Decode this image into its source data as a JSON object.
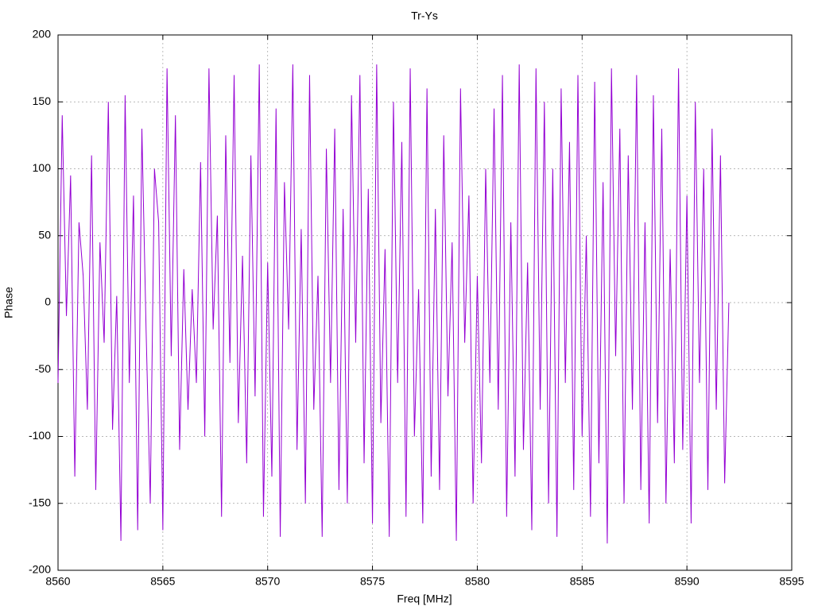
{
  "chart_data": {
    "type": "line",
    "title": "Tr-Ys",
    "xlabel": "Freq [MHz]",
    "ylabel": "Phase",
    "color": "#9400d3",
    "grid": true,
    "xlim": [
      8560,
      8595
    ],
    "xticks": [
      8560,
      8565,
      8570,
      8575,
      8580,
      8585,
      8590,
      8595
    ],
    "ylim": [
      -200,
      200
    ],
    "yticks": [
      -200,
      -150,
      -100,
      -50,
      0,
      50,
      100,
      150,
      200
    ],
    "x": [
      8560,
      8560.2,
      8560.4,
      8560.6,
      8560.8,
      8561,
      8561.2,
      8561.4,
      8561.6,
      8561.8,
      8562,
      8562.2,
      8562.4,
      8562.6,
      8562.8,
      8563,
      8563.2,
      8563.4,
      8563.6,
      8563.8,
      8564,
      8564.2,
      8564.4,
      8564.6,
      8564.8,
      8565,
      8565.2,
      8565.4,
      8565.6,
      8565.8,
      8566,
      8566.2,
      8566.4,
      8566.6,
      8566.8,
      8567,
      8567.2,
      8567.4,
      8567.6,
      8567.8,
      8568,
      8568.2,
      8568.4,
      8568.6,
      8568.8,
      8569,
      8569.2,
      8569.4,
      8569.6,
      8569.8,
      8570,
      8570.2,
      8570.4,
      8570.6,
      8570.8,
      8571,
      8571.2,
      8571.4,
      8571.6,
      8571.8,
      8572,
      8572.2,
      8572.4,
      8572.6,
      8572.8,
      8573,
      8573.2,
      8573.4,
      8573.6,
      8573.8,
      8574,
      8574.2,
      8574.4,
      8574.6,
      8574.8,
      8575,
      8575.2,
      8575.4,
      8575.6,
      8575.8,
      8576,
      8576.2,
      8576.4,
      8576.6,
      8576.8,
      8577,
      8577.2,
      8577.4,
      8577.6,
      8577.8,
      8578,
      8578.2,
      8578.4,
      8578.6,
      8578.8,
      8579,
      8579.2,
      8579.4,
      8579.6,
      8579.8,
      8580,
      8580.2,
      8580.4,
      8580.6,
      8580.8,
      8581,
      8581.2,
      8581.4,
      8581.6,
      8581.8,
      8582,
      8582.2,
      8582.4,
      8582.6,
      8582.8,
      8583,
      8583.2,
      8583.4,
      8583.6,
      8583.8,
      8584,
      8584.2,
      8584.4,
      8584.6,
      8584.8,
      8585,
      8585.2,
      8585.4,
      8585.6,
      8585.8,
      8586,
      8586.2,
      8586.4,
      8586.6,
      8586.8,
      8587,
      8587.2,
      8587.4,
      8587.6,
      8587.8,
      8588,
      8588.2,
      8588.4,
      8588.6,
      8588.8,
      8589,
      8589.2,
      8589.4,
      8589.6,
      8589.8,
      8590,
      8590.2,
      8590.4,
      8590.6,
      8590.8,
      8591,
      8591.2,
      8591.4,
      8591.6,
      8591.8,
      8592
    ],
    "values": [
      -60,
      140,
      -10,
      95,
      -130,
      60,
      20,
      -80,
      110,
      -140,
      45,
      -30,
      150,
      -95,
      5,
      -178,
      155,
      -60,
      80,
      -170,
      130,
      -20,
      -150,
      100,
      60,
      -170,
      175,
      -40,
      140,
      -110,
      25,
      -80,
      10,
      -60,
      105,
      -100,
      175,
      -20,
      65,
      -160,
      125,
      -45,
      170,
      -90,
      35,
      -120,
      110,
      -70,
      178,
      -160,
      30,
      -130,
      145,
      -175,
      90,
      -20,
      178,
      -110,
      55,
      -150,
      170,
      -80,
      20,
      -175,
      115,
      -60,
      130,
      -140,
      70,
      -150,
      155,
      -30,
      170,
      -120,
      85,
      -165,
      178,
      -90,
      40,
      -175,
      150,
      -60,
      120,
      -160,
      175,
      -100,
      10,
      -165,
      160,
      -130,
      70,
      -140,
      125,
      -70,
      45,
      -178,
      160,
      -30,
      80,
      -150,
      20,
      -120,
      100,
      -60,
      145,
      -80,
      170,
      -160,
      60,
      -130,
      178,
      -110,
      30,
      -170,
      175,
      -80,
      150,
      -150,
      100,
      -175,
      160,
      -60,
      120,
      -140,
      170,
      -100,
      50,
      -160,
      165,
      -120,
      90,
      -180,
      175,
      -40,
      130,
      -150,
      110,
      -80,
      170,
      -140,
      60,
      -165,
      155,
      -90,
      130,
      -150,
      40,
      -120,
      175,
      -110,
      80,
      -165,
      150,
      -60,
      100,
      -140,
      130,
      -80,
      110,
      -135,
      0
    ]
  }
}
